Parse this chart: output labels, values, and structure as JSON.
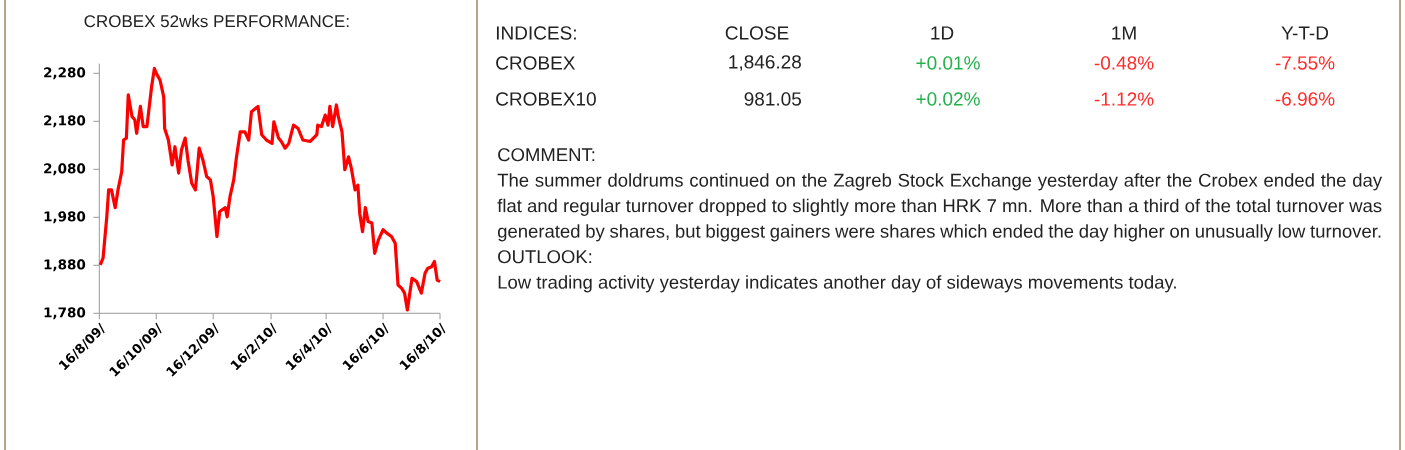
{
  "chart_data": [
    {
      "type": "line",
      "title": "CROBEX 52wks PERFORMANCE:",
      "color": "#ff0000",
      "marker": "none",
      "xlim": [
        "2009-08-16",
        "2010-08-16"
      ],
      "xticks": [
        {
          "value": "2009-08-16",
          "label": "16/8/09/"
        },
        {
          "value": "2009-10-16",
          "label": "16/10/09/"
        },
        {
          "value": "2009-12-16",
          "label": "16/12/09/"
        },
        {
          "value": "2010-02-16",
          "label": "16/2/10/"
        },
        {
          "value": "2010-04-16",
          "label": "16/4/10/"
        },
        {
          "value": "2010-06-16",
          "label": "16/6/10/"
        },
        {
          "value": "2010-08-16",
          "label": "16/8/10/"
        }
      ],
      "ylim": [
        1780,
        2300
      ],
      "yticks": [
        {
          "value": 1780,
          "label": "1,780"
        },
        {
          "value": 1880,
          "label": "1,880"
        },
        {
          "value": 1980,
          "label": "1,980"
        },
        {
          "value": 2080,
          "label": "2,080"
        },
        {
          "value": 2180,
          "label": "2,180"
        },
        {
          "value": 2280,
          "label": "2,280"
        }
      ],
      "x": [
        "2009-08-17",
        "2009-08-20",
        "2009-08-24",
        "2009-08-26",
        "2009-08-29",
        "2009-09-02",
        "2009-09-05",
        "2009-09-09",
        "2009-09-11",
        "2009-09-14",
        "2009-09-16",
        "2009-09-20",
        "2009-09-23",
        "2009-09-25",
        "2009-09-29",
        "2009-10-02",
        "2009-10-06",
        "2009-10-11",
        "2009-10-14",
        "2009-10-16",
        "2009-10-20",
        "2009-10-24",
        "2009-10-25",
        "2009-10-29",
        "2009-11-02",
        "2009-11-05",
        "2009-11-09",
        "2009-11-12",
        "2009-11-16",
        "2009-11-19",
        "2009-11-23",
        "2009-11-27",
        "2009-12-01",
        "2009-12-05",
        "2009-12-09",
        "2009-12-13",
        "2009-12-16",
        "2009-12-20",
        "2009-12-23",
        "2009-12-29",
        "2009-12-31",
        "2010-01-03",
        "2010-01-07",
        "2010-01-10",
        "2010-01-14",
        "2010-01-19",
        "2010-01-23",
        "2010-01-26",
        "2010-02-02",
        "2010-02-06",
        "2010-02-11",
        "2010-02-17",
        "2010-02-19",
        "2010-02-24",
        "2010-02-27",
        "2010-03-03",
        "2010-03-07",
        "2010-03-12",
        "2010-03-17",
        "2010-03-22",
        "2010-03-30",
        "2010-04-06",
        "2010-04-07",
        "2010-04-11",
        "2010-04-15",
        "2010-04-18",
        "2010-04-20",
        "2010-04-23",
        "2010-04-27",
        "2010-04-29",
        "2010-05-03",
        "2010-05-06",
        "2010-05-10",
        "2010-05-13",
        "2010-05-17",
        "2010-05-20",
        "2010-05-22",
        "2010-05-25",
        "2010-05-28",
        "2010-05-31",
        "2010-06-04",
        "2010-06-07",
        "2010-06-11",
        "2010-06-16",
        "2010-06-20",
        "2010-06-25",
        "2010-06-29",
        "2010-07-02",
        "2010-07-06",
        "2010-07-09",
        "2010-07-12",
        "2010-07-17",
        "2010-07-22",
        "2010-07-27",
        "2010-07-31",
        "2010-08-03",
        "2010-08-07",
        "2010-08-10",
        "2010-08-13",
        "2010-08-16"
      ],
      "values": [
        1881,
        1895,
        1981,
        2037,
        2037,
        2000,
        2037,
        2075,
        2141,
        2145,
        2235,
        2190,
        2183,
        2155,
        2211,
        2169,
        2169,
        2252,
        2290,
        2280,
        2266,
        2231,
        2165,
        2141,
        2089,
        2127,
        2072,
        2120,
        2145,
        2099,
        2051,
        2037,
        2124,
        2099,
        2065,
        2058,
        2023,
        1940,
        1992,
        2000,
        1981,
        2023,
        2058,
        2106,
        2158,
        2158,
        2141,
        2200,
        2211,
        2152,
        2141,
        2134,
        2179,
        2145,
        2138,
        2124,
        2134,
        2172,
        2165,
        2141,
        2138,
        2152,
        2172,
        2169,
        2193,
        2172,
        2211,
        2169,
        2214,
        2190,
        2158,
        2079,
        2106,
        2082,
        2037,
        2047,
        1988,
        1950,
        2000,
        1971,
        1968,
        1905,
        1933,
        1954,
        1947,
        1940,
        1926,
        1839,
        1832,
        1822,
        1787,
        1853,
        1846,
        1822,
        1864,
        1874,
        1877,
        1888,
        1849,
        1846
      ]
    },
    {
      "type": "other",
      "annotations": [
        "INDICES:",
        "CLOSE",
        "1D",
        "1M",
        "Y-T-D",
        "CROBEX",
        "1,846.28",
        "+0.01%",
        "-0.48%",
        "-7.55%",
        "CROBEX10",
        "981.05",
        "+0.02%",
        "-1.12%",
        "-6.96%",
        "COMMENT:",
        "The summer doldrums continued on the Zagreb Stock Exchange yesterday after the Crobex ended the day flat and regular turnover dropped to slightly more than HRK 7 mn. More than a third of the total turnover was generated by shares, but biggest gainers were shares which ended the day higher on unusually low turnover.",
        "OUTLOOK:",
        "Low trading activity yesterday indicates another day of sideways movements today."
      ],
      "colors": [
        null,
        null,
        null,
        null,
        null,
        null,
        null,
        "#22b04a",
        "#ff2a2a",
        "#ff2a2a",
        null,
        null,
        "#22b04a",
        "#ff2a2a",
        "#ff2a2a",
        null,
        null,
        null,
        null
      ]
    }
  ]
}
